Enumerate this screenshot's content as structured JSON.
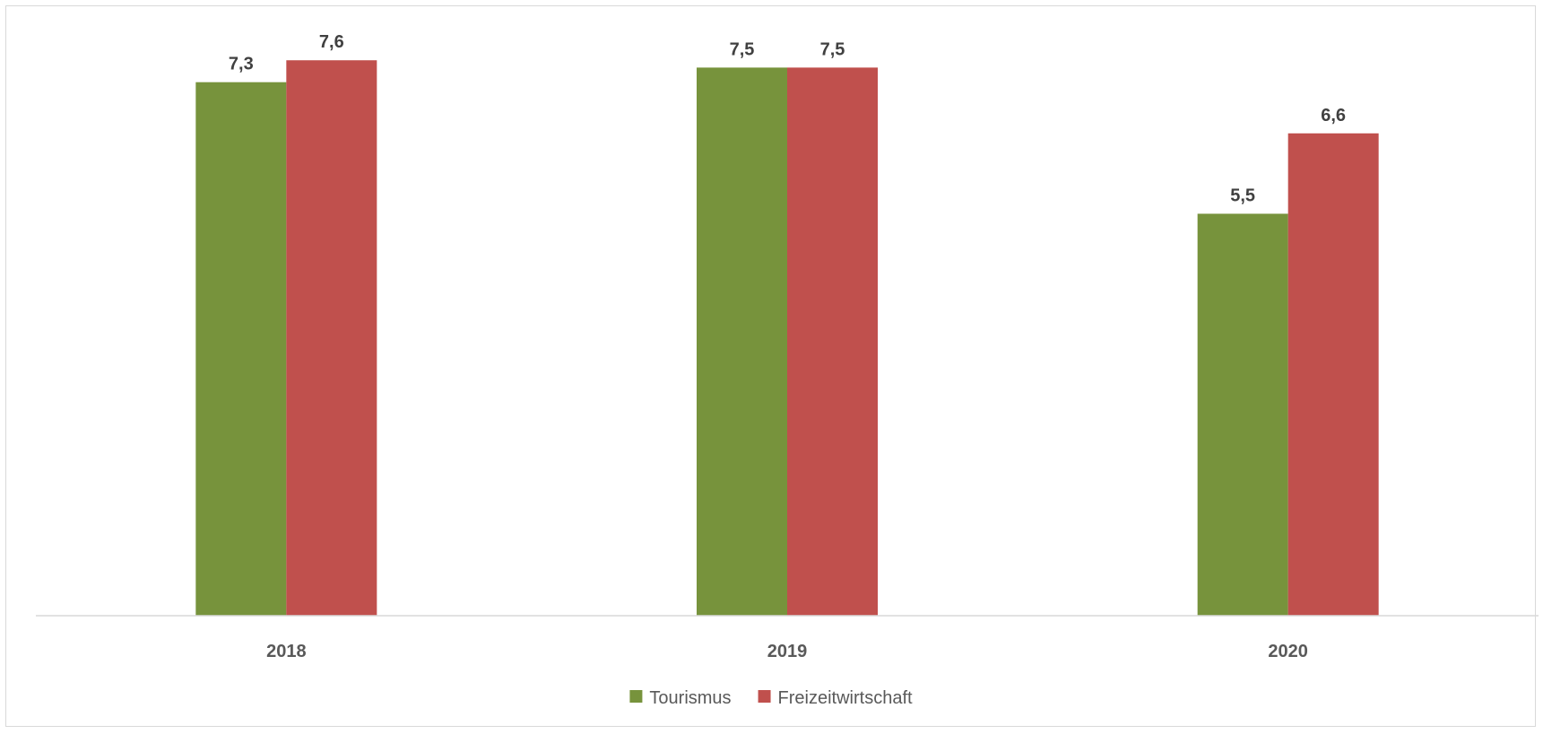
{
  "chart_data": {
    "type": "bar",
    "categories": [
      "2018",
      "2019",
      "2020"
    ],
    "series": [
      {
        "name": "Tourismus",
        "values": [
          7.3,
          7.5,
          5.5
        ],
        "color": "#77933c"
      },
      {
        "name": "Freizeitwirtschaft",
        "values": [
          7.6,
          7.5,
          6.6
        ],
        "color": "#c0504d"
      }
    ],
    "value_labels": [
      [
        "7,3",
        "7,5",
        "5,5"
      ],
      [
        "7,6",
        "7,5",
        "6,6"
      ]
    ],
    "title": "",
    "xlabel": "",
    "ylabel": "",
    "ylim": [
      0,
      8.4
    ],
    "grid": false,
    "y_axis_visible": false,
    "legend_position": "bottom"
  }
}
